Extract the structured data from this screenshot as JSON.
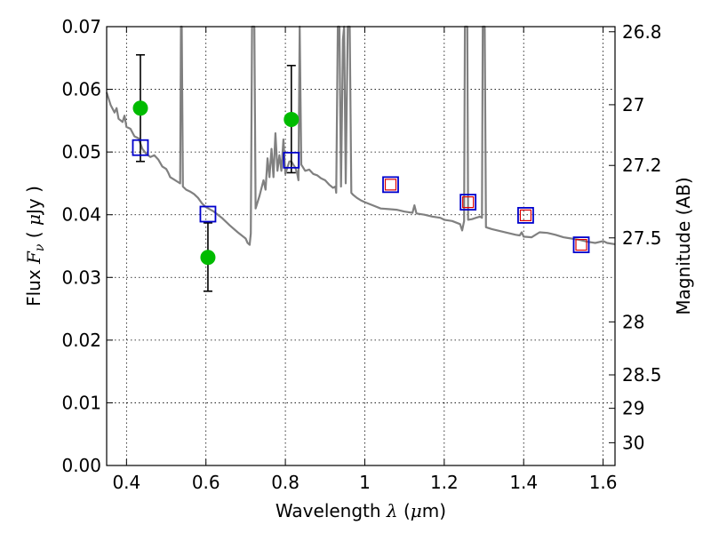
{
  "chart_data": {
    "type": "scatter",
    "title": "",
    "xlabel": "Wavelength  λ (μm)",
    "xlabel_parts": {
      "before": "Wavelength  ",
      "symbol": "λ",
      "after": " (",
      "mu": "μ",
      "unit": "m)"
    },
    "ylabel": "Flux  Fν  ( μJy )",
    "ylabel_parts": {
      "before": "Flux  ",
      "symbol": "F",
      "sub": "ν",
      "after": "  ( ",
      "mu": "μ",
      "unit": "Jy )"
    },
    "y2label": "Magnitude (AB)",
    "xlim": [
      0.35,
      1.63
    ],
    "ylim": [
      0.0,
      0.07
    ],
    "grid": true,
    "xticks": [
      0.4,
      0.6,
      0.8,
      1.0,
      1.2,
      1.4,
      1.6
    ],
    "xtick_labels": [
      "0.4",
      "0.6",
      "0.8",
      "1",
      "1.2",
      "1.4",
      "1.6"
    ],
    "yticks": [
      0.0,
      0.01,
      0.02,
      0.03,
      0.04,
      0.05,
      0.06,
      0.07
    ],
    "ytick_labels": [
      "0.00",
      "0.01",
      "0.02",
      "0.03",
      "0.04",
      "0.05",
      "0.06",
      "0.07"
    ],
    "y2ticks": [
      {
        "label": "26.8",
        "mag": 26.8
      },
      {
        "label": "27",
        "mag": 27.0
      },
      {
        "label": "27.2",
        "mag": 27.2
      },
      {
        "label": "27.5",
        "mag": 27.5
      },
      {
        "label": "28",
        "mag": 28.0
      },
      {
        "label": "28.5",
        "mag": 28.5
      },
      {
        "label": "29",
        "mag": 29.0
      },
      {
        "label": "30",
        "mag": 30.0
      }
    ],
    "colors": {
      "model": "#808080",
      "observed": "#00bb00",
      "errorbar": "#000000",
      "model_phot": "#0000cc",
      "red_phot": "#dd0000"
    },
    "series": [
      {
        "kind": "line",
        "points": [
          [
            0.35,
            0.0595
          ],
          [
            0.36,
            0.0575
          ],
          [
            0.37,
            0.0563
          ],
          [
            0.375,
            0.057
          ],
          [
            0.38,
            0.0553
          ],
          [
            0.39,
            0.0548
          ],
          [
            0.395,
            0.0558
          ],
          [
            0.4,
            0.054
          ],
          [
            0.41,
            0.0537
          ],
          [
            0.42,
            0.0525
          ],
          [
            0.43,
            0.0522
          ],
          [
            0.44,
            0.0505
          ],
          [
            0.45,
            0.0497
          ],
          [
            0.46,
            0.0492
          ],
          [
            0.47,
            0.0495
          ],
          [
            0.48,
            0.0488
          ],
          [
            0.49,
            0.0477
          ],
          [
            0.5,
            0.0473
          ],
          [
            0.505,
            0.0467
          ],
          [
            0.51,
            0.046
          ],
          [
            0.52,
            0.0456
          ],
          [
            0.53,
            0.0452
          ],
          [
            0.535,
            0.045
          ],
          [
            0.537,
            0.07
          ],
          [
            0.539,
            0.07
          ],
          [
            0.542,
            0.0445
          ],
          [
            0.55,
            0.044
          ],
          [
            0.56,
            0.0437
          ],
          [
            0.57,
            0.0433
          ],
          [
            0.58,
            0.0427
          ],
          [
            0.59,
            0.0418
          ],
          [
            0.6,
            0.0412
          ],
          [
            0.62,
            0.0405
          ],
          [
            0.64,
            0.0395
          ],
          [
            0.66,
            0.0383
          ],
          [
            0.68,
            0.0372
          ],
          [
            0.7,
            0.0362
          ],
          [
            0.705,
            0.0355
          ],
          [
            0.71,
            0.0352
          ],
          [
            0.713,
            0.037
          ],
          [
            0.716,
            0.07
          ],
          [
            0.722,
            0.07
          ],
          [
            0.725,
            0.041
          ],
          [
            0.735,
            0.043
          ],
          [
            0.745,
            0.0455
          ],
          [
            0.75,
            0.044
          ],
          [
            0.755,
            0.049
          ],
          [
            0.76,
            0.046
          ],
          [
            0.765,
            0.0505
          ],
          [
            0.77,
            0.046
          ],
          [
            0.775,
            0.053
          ],
          [
            0.78,
            0.047
          ],
          [
            0.785,
            0.0495
          ],
          [
            0.79,
            0.047
          ],
          [
            0.795,
            0.052
          ],
          [
            0.8,
            0.0465
          ],
          [
            0.805,
            0.0475
          ],
          [
            0.81,
            0.0485
          ],
          [
            0.815,
            0.0485
          ],
          [
            0.82,
            0.048
          ],
          [
            0.825,
            0.0475
          ],
          [
            0.83,
            0.0465
          ],
          [
            0.833,
            0.0455
          ],
          [
            0.836,
            0.07
          ],
          [
            0.84,
            0.048
          ],
          [
            0.85,
            0.047
          ],
          [
            0.86,
            0.0472
          ],
          [
            0.87,
            0.0465
          ],
          [
            0.88,
            0.0463
          ],
          [
            0.89,
            0.0458
          ],
          [
            0.9,
            0.0455
          ],
          [
            0.91,
            0.0448
          ],
          [
            0.92,
            0.0443
          ],
          [
            0.926,
            0.0445
          ],
          [
            0.928,
            0.0435
          ],
          [
            0.932,
            0.07
          ],
          [
            0.936,
            0.07
          ],
          [
            0.94,
            0.0445
          ],
          [
            0.945,
            0.068
          ],
          [
            0.948,
            0.07
          ],
          [
            0.952,
            0.045
          ],
          [
            0.957,
            0.07
          ],
          [
            0.962,
            0.07
          ],
          [
            0.966,
            0.0435
          ],
          [
            0.97,
            0.0432
          ],
          [
            0.98,
            0.0427
          ],
          [
            0.99,
            0.0423
          ],
          [
            1.0,
            0.042
          ],
          [
            1.02,
            0.0415
          ],
          [
            1.04,
            0.041
          ],
          [
            1.06,
            0.0409
          ],
          [
            1.08,
            0.0408
          ],
          [
            1.1,
            0.0405
          ],
          [
            1.12,
            0.0403
          ],
          [
            1.125,
            0.0415
          ],
          [
            1.13,
            0.0402
          ],
          [
            1.15,
            0.04
          ],
          [
            1.17,
            0.0397
          ],
          [
            1.19,
            0.0395
          ],
          [
            1.2,
            0.0392
          ],
          [
            1.22,
            0.039
          ],
          [
            1.24,
            0.0385
          ],
          [
            1.245,
            0.0375
          ],
          [
            1.25,
            0.039
          ],
          [
            1.252,
            0.07
          ],
          [
            1.258,
            0.07
          ],
          [
            1.26,
            0.0392
          ],
          [
            1.27,
            0.0393
          ],
          [
            1.28,
            0.0395
          ],
          [
            1.29,
            0.0397
          ],
          [
            1.295,
            0.0395
          ],
          [
            1.297,
            0.07
          ],
          [
            1.302,
            0.07
          ],
          [
            1.305,
            0.038
          ],
          [
            1.32,
            0.0377
          ],
          [
            1.34,
            0.0374
          ],
          [
            1.36,
            0.0371
          ],
          [
            1.38,
            0.0368
          ],
          [
            1.39,
            0.0367
          ],
          [
            1.395,
            0.0372
          ],
          [
            1.4,
            0.0365
          ],
          [
            1.42,
            0.0364
          ],
          [
            1.44,
            0.0372
          ],
          [
            1.46,
            0.0371
          ],
          [
            1.48,
            0.0368
          ],
          [
            1.5,
            0.0364
          ],
          [
            1.52,
            0.0362
          ],
          [
            1.54,
            0.036
          ],
          [
            1.56,
            0.0357
          ],
          [
            1.58,
            0.0355
          ],
          [
            1.6,
            0.0358
          ],
          [
            1.61,
            0.0355
          ],
          [
            1.63,
            0.0353
          ]
        ]
      },
      {
        "kind": "points-with-errorbars",
        "x": [
          0.435,
          0.605,
          0.815
        ],
        "y": [
          0.057,
          0.0332,
          0.0552
        ],
        "yerr_low": [
          0.0485,
          0.0278,
          0.0467
        ],
        "yerr_high": [
          0.0655,
          0.0387,
          0.0638
        ]
      },
      {
        "kind": "open-squares",
        "x": [
          0.435,
          0.605,
          0.815,
          1.065,
          1.26,
          1.405,
          1.545
        ],
        "y": [
          0.0507,
          0.0401,
          0.0487,
          0.0448,
          0.042,
          0.0399,
          0.0352
        ]
      },
      {
        "kind": "small-open-squares",
        "x": [
          1.065,
          1.26,
          1.405,
          1.545
        ],
        "y": [
          0.0448,
          0.042,
          0.0399,
          0.0352
        ]
      }
    ]
  }
}
